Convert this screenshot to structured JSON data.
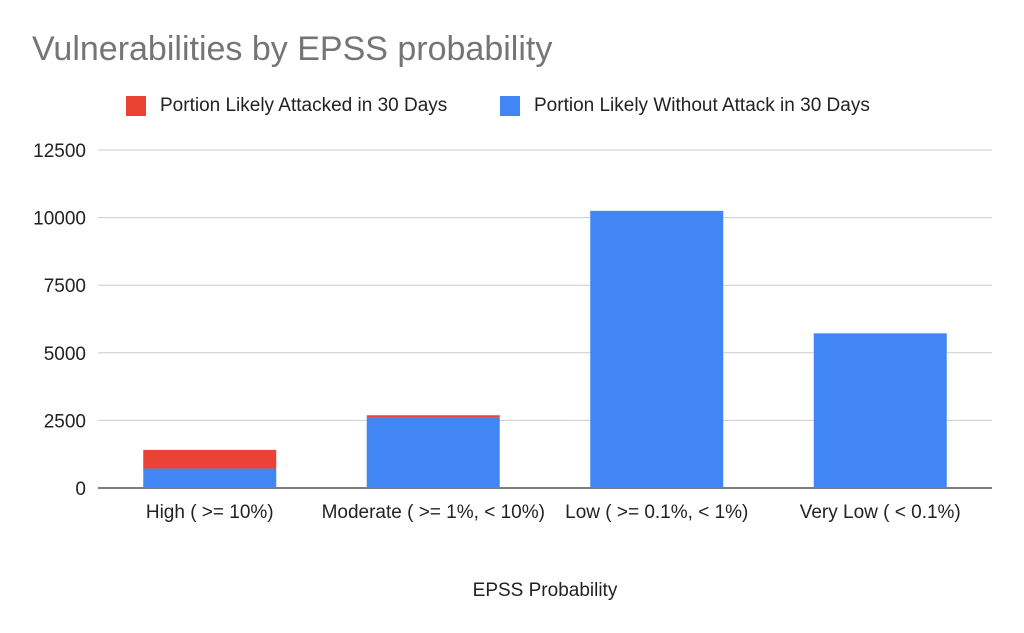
{
  "chart_data": {
    "type": "bar",
    "stacked": true,
    "title": "Vulnerabilities by EPSS probability",
    "xlabel": "EPSS Probability",
    "ylabel": "",
    "categories": [
      "High ( >= 10%)",
      "Moderate ( >= 1%, < 10%)",
      "Low ( >= 0.1%, < 1%)",
      "Very Low ( < 0.1%)"
    ],
    "series": [
      {
        "name": "Portion Likely Without Attack in 30 Days",
        "color": "#4285f4",
        "values": [
          720,
          2610,
          10250,
          5720
        ]
      },
      {
        "name": "Portion Likely Attacked in 30 Days",
        "color": "#ea4335",
        "values": [
          690,
          80,
          0,
          0
        ]
      }
    ],
    "legend_order": [
      1,
      0
    ],
    "yticks": [
      0,
      2500,
      5000,
      7500,
      10000,
      12500
    ],
    "ylim": [
      0,
      12500
    ],
    "grid": true,
    "legend_position": "top"
  }
}
